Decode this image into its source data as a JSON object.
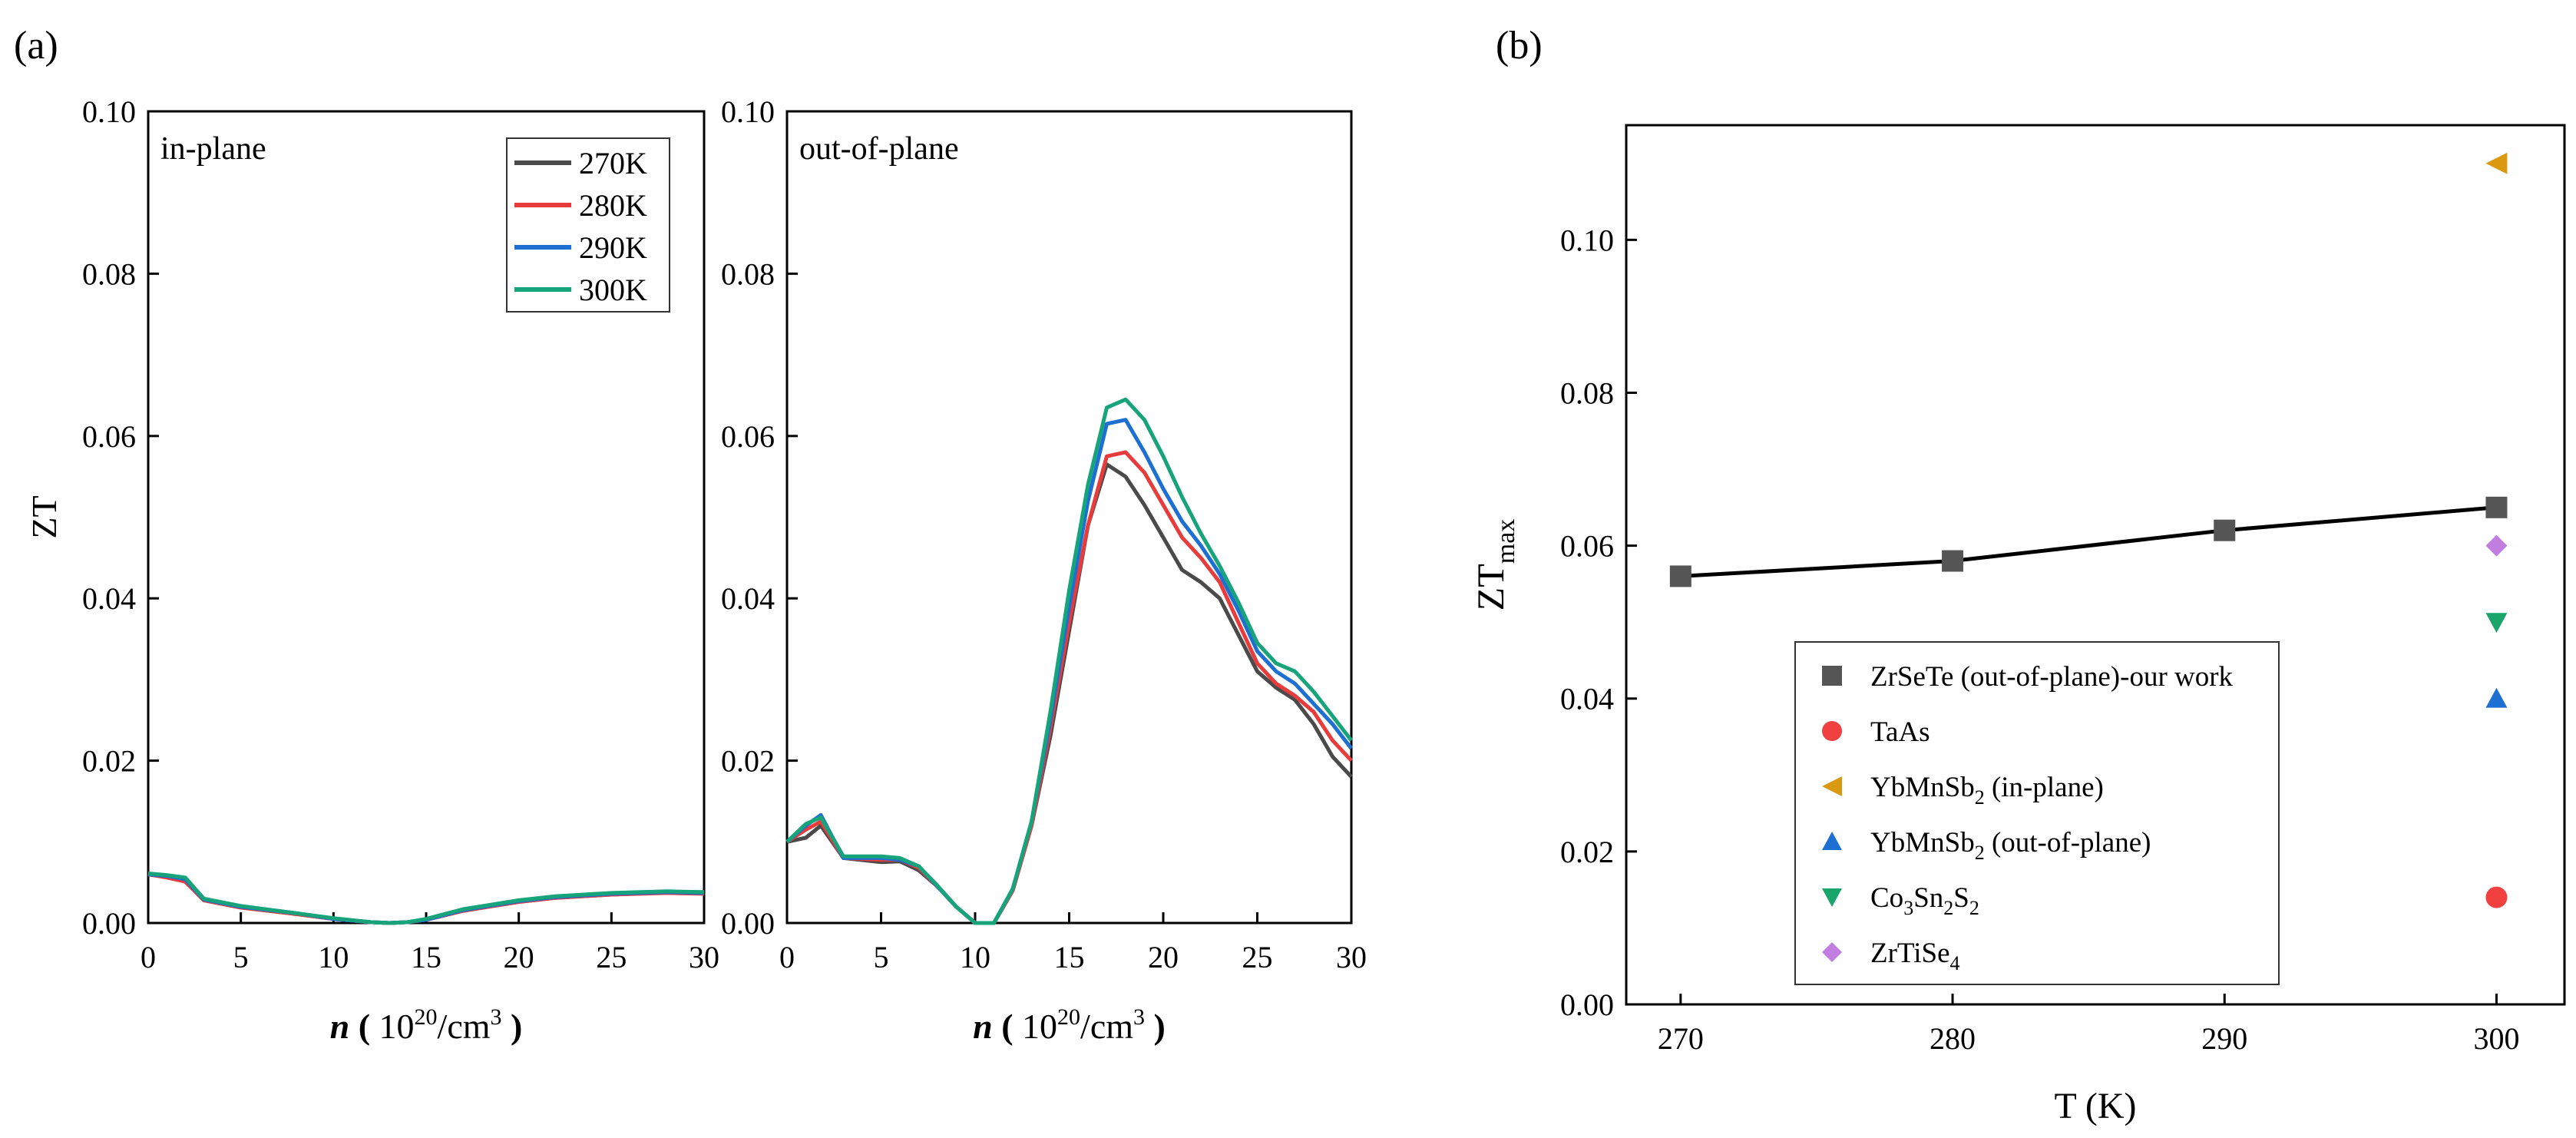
{
  "panel_labels": [
    "(a)",
    "(b)"
  ],
  "chart_data": [
    {
      "type": "line",
      "panel": "(a)",
      "annotation": "in-plane",
      "xlabel": {
        "italic": "n",
        "open": " ( ",
        "base": "10",
        "exp": "20",
        "unit": "/cm",
        "unit_exp": "3",
        "close": " )"
      },
      "ylabel": "ZT",
      "xlim": [
        0,
        30
      ],
      "ylim": [
        0,
        0.1
      ],
      "xticks": [
        "0",
        "5",
        "10",
        "15",
        "20",
        "25",
        "30"
      ],
      "yticks": [
        "0.00",
        "0.02",
        "0.04",
        "0.06",
        "0.08",
        "0.10"
      ],
      "legend": "top-right",
      "series": [
        {
          "name": "270K",
          "color": "#4a4a4a",
          "x": [
            0,
            1,
            2,
            3,
            5,
            8,
            10,
            12,
            13,
            14,
            15,
            17,
            20,
            22,
            25,
            28,
            30
          ],
          "y": [
            0.006,
            0.0057,
            0.0052,
            0.0028,
            0.0019,
            0.0011,
            0.0005,
            0.0001,
            0.0,
            0.0001,
            0.0004,
            0.0015,
            0.0026,
            0.0031,
            0.0035,
            0.0038,
            0.0037
          ]
        },
        {
          "name": "280K",
          "color": "#e83b3b",
          "x": [
            0,
            1,
            2,
            3,
            5,
            8,
            10,
            12,
            13,
            14,
            15,
            17,
            20,
            22,
            25,
            28,
            30
          ],
          "y": [
            0.006,
            0.0056,
            0.0051,
            0.0028,
            0.0019,
            0.0011,
            0.0005,
            0.0001,
            0.0,
            0.0001,
            0.0004,
            0.0015,
            0.0026,
            0.0031,
            0.0035,
            0.0037,
            0.0036
          ]
        },
        {
          "name": "290K",
          "color": "#1d6fd1",
          "x": [
            0,
            1,
            2,
            3,
            5,
            8,
            10,
            12,
            13,
            14,
            15,
            17,
            20,
            22,
            25,
            28,
            30
          ],
          "y": [
            0.006,
            0.0058,
            0.0054,
            0.0029,
            0.002,
            0.0012,
            0.0005,
            0.0001,
            0.0,
            0.0001,
            0.0004,
            0.0016,
            0.0027,
            0.0032,
            0.0036,
            0.0038,
            0.0037
          ]
        },
        {
          "name": "300K",
          "color": "#18a47a",
          "x": [
            0,
            1,
            2,
            3,
            5,
            8,
            10,
            12,
            13,
            14,
            15,
            17,
            20,
            22,
            25,
            28,
            30
          ],
          "y": [
            0.0061,
            0.0059,
            0.0056,
            0.003,
            0.0021,
            0.0012,
            0.0006,
            0.0001,
            0.0,
            0.0001,
            0.0005,
            0.0017,
            0.0028,
            0.0033,
            0.0037,
            0.0039,
            0.0038
          ]
        }
      ]
    },
    {
      "type": "line",
      "panel": "(a)",
      "annotation": "out-of-plane",
      "xlabel": {
        "italic": "n",
        "open": " ( ",
        "base": "10",
        "exp": "20",
        "unit": "/cm",
        "unit_exp": "3",
        "close": " )"
      },
      "ylabel": "",
      "xlim": [
        0,
        30
      ],
      "ylim": [
        0,
        0.1
      ],
      "xticks": [
        "0",
        "5",
        "10",
        "15",
        "20",
        "25",
        "30"
      ],
      "yticks": [
        "0.00",
        "0.02",
        "0.04",
        "0.06",
        "0.08",
        "0.10"
      ],
      "series": [
        {
          "name": "270K",
          "color": "#4a4a4a",
          "x": [
            0,
            1,
            1.8,
            3,
            5,
            6,
            7,
            8,
            9,
            10,
            11,
            12,
            13,
            14,
            15,
            16,
            17,
            18,
            19,
            20,
            21,
            22,
            23,
            24,
            25,
            26,
            27,
            28,
            29,
            30
          ],
          "y": [
            0.01,
            0.0105,
            0.012,
            0.008,
            0.0075,
            0.0076,
            0.0065,
            0.0045,
            0.002,
            0.0,
            0.0,
            0.004,
            0.012,
            0.023,
            0.036,
            0.049,
            0.0565,
            0.055,
            0.0515,
            0.0475,
            0.0435,
            0.042,
            0.04,
            0.0355,
            0.031,
            0.029,
            0.0275,
            0.0245,
            0.0205,
            0.018
          ]
        },
        {
          "name": "280K",
          "color": "#e83b3b",
          "x": [
            0,
            1,
            1.8,
            3,
            5,
            6,
            7,
            8,
            9,
            10,
            11,
            12,
            13,
            14,
            15,
            16,
            17,
            18,
            19,
            20,
            21,
            22,
            23,
            24,
            25,
            26,
            27,
            28,
            29,
            30
          ],
          "y": [
            0.01,
            0.0115,
            0.0125,
            0.008,
            0.0078,
            0.0078,
            0.0068,
            0.0045,
            0.002,
            0.0,
            0.0,
            0.004,
            0.012,
            0.024,
            0.037,
            0.049,
            0.0575,
            0.058,
            0.0555,
            0.0515,
            0.0475,
            0.045,
            0.042,
            0.037,
            0.032,
            0.0295,
            0.028,
            0.026,
            0.0225,
            0.02
          ]
        },
        {
          "name": "290K",
          "color": "#1d6fd1",
          "x": [
            0,
            1,
            1.8,
            3,
            5,
            6,
            7,
            8,
            9,
            10,
            11,
            12,
            13,
            14,
            15,
            16,
            17,
            18,
            19,
            20,
            21,
            22,
            23,
            24,
            25,
            26,
            27,
            28,
            29,
            30
          ],
          "y": [
            0.01,
            0.012,
            0.0133,
            0.008,
            0.008,
            0.0078,
            0.007,
            0.0045,
            0.002,
            0.0,
            0.0,
            0.0042,
            0.0125,
            0.025,
            0.039,
            0.052,
            0.0615,
            0.062,
            0.058,
            0.0535,
            0.0495,
            0.0465,
            0.043,
            0.0385,
            0.0335,
            0.031,
            0.0295,
            0.027,
            0.0245,
            0.0215
          ]
        },
        {
          "name": "300K",
          "color": "#18a47a",
          "x": [
            0,
            1,
            1.8,
            3,
            5,
            6,
            7,
            8,
            9,
            10,
            11,
            12,
            13,
            14,
            15,
            16,
            17,
            18,
            19,
            20,
            21,
            22,
            23,
            24,
            25,
            26,
            27,
            28,
            29,
            30
          ],
          "y": [
            0.01,
            0.0122,
            0.013,
            0.0082,
            0.0082,
            0.008,
            0.007,
            0.0046,
            0.002,
            0.0,
            0.0,
            0.0042,
            0.0125,
            0.026,
            0.041,
            0.054,
            0.0635,
            0.0645,
            0.062,
            0.0575,
            0.0525,
            0.048,
            0.044,
            0.0395,
            0.0345,
            0.032,
            0.031,
            0.0285,
            0.0255,
            0.0225
          ]
        }
      ]
    },
    {
      "type": "scatter",
      "panel": "(b)",
      "xlabel": "T (K)",
      "ylabel": {
        "base": "ZT",
        "sub": "max"
      },
      "xlim": [
        268,
        302.5
      ],
      "ylim": [
        0,
        0.115
      ],
      "xticks": [
        "270",
        "280",
        "290",
        "300"
      ],
      "yticks": [
        "0.00",
        "0.02",
        "0.04",
        "0.06",
        "0.08",
        "0.10"
      ],
      "legend": "center",
      "series": [
        {
          "name": "ZrSeTe (out-of-plane)-our work",
          "marker": "square",
          "color": "#555555",
          "line": true,
          "x": [
            270,
            280,
            290,
            300
          ],
          "y": [
            0.056,
            0.058,
            0.062,
            0.065
          ]
        },
        {
          "name": "TaAs",
          "marker": "circle",
          "color": "#f04040",
          "x": [
            300
          ],
          "y": [
            0.014
          ]
        },
        {
          "name": "YbMnSb2 (in-plane)",
          "label": {
            "pre": "YbMnSb",
            "sub": "2",
            "post": " (in-plane)"
          },
          "marker": "triangle-left",
          "color": "#d99a12",
          "x": [
            300
          ],
          "y": [
            0.11
          ]
        },
        {
          "name": "YbMnSb2 (out-of-plane)",
          "label": {
            "pre": "YbMnSb",
            "sub": "2",
            "post": " (out-of-plane)"
          },
          "marker": "triangle-up",
          "color": "#1d6fd1",
          "x": [
            300
          ],
          "y": [
            0.04
          ]
        },
        {
          "name": "Co3Sn2S2",
          "label": {
            "parts": [
              "Co",
              "3",
              "Sn",
              "2",
              "S",
              "2"
            ]
          },
          "marker": "triangle-down",
          "color": "#1aa66a",
          "x": [
            300
          ],
          "y": [
            0.05
          ]
        },
        {
          "name": "ZrTiSe4",
          "label": {
            "pre": "ZrTiSe",
            "sub": "4",
            "post": ""
          },
          "marker": "diamond",
          "color": "#c07ee0",
          "x": [
            300
          ],
          "y": [
            0.06
          ]
        }
      ]
    }
  ]
}
